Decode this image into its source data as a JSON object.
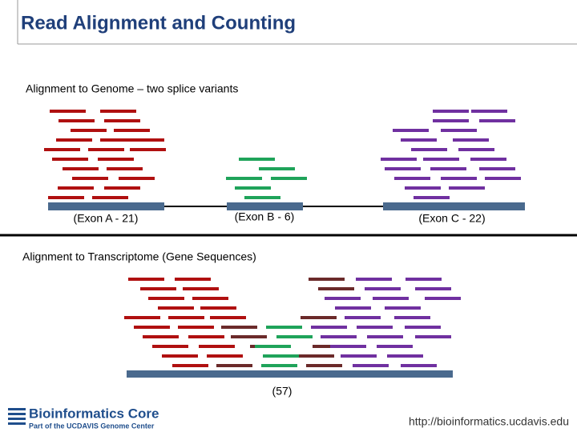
{
  "header": {
    "title": "Read Alignment and Counting"
  },
  "genome": {
    "heading": "Alignment to Genome – two splice variants",
    "exons": [
      "(Exon A - 21)",
      "(Exon B - 6)",
      "(Exon C - 22)"
    ]
  },
  "transcriptome": {
    "heading": "Alignment to Transcriptome (Gene Sequences)",
    "label": "(57)"
  },
  "footer": {
    "logo_title": "Bioinformatics Core",
    "logo_subtitle": "Part of the UCDAVIS Genome Center",
    "url": "http://bioinformatics.ucdavis.edu"
  }
}
